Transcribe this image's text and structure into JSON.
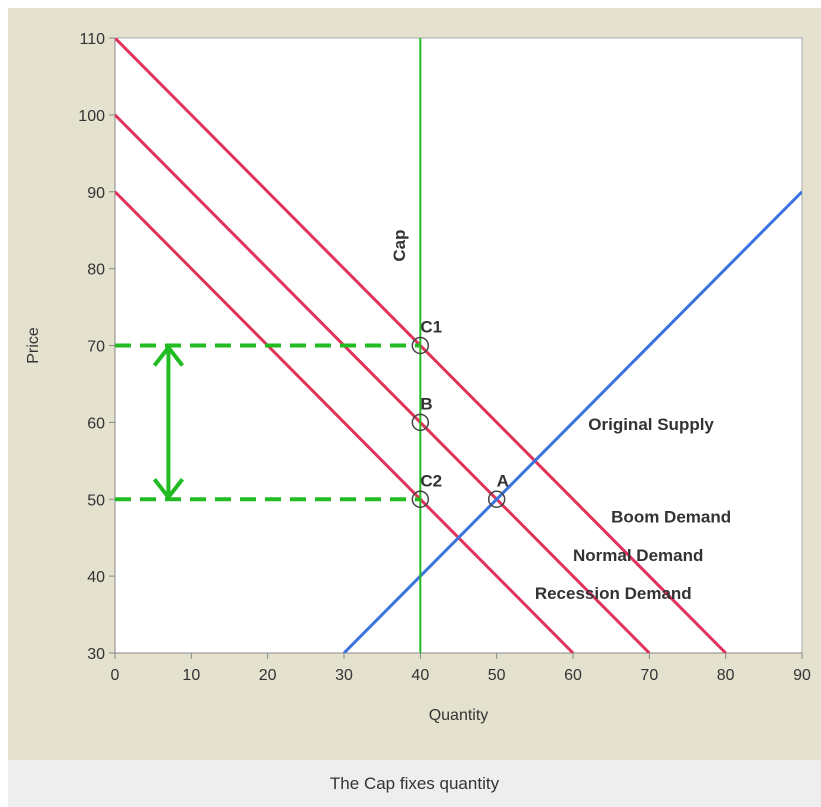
{
  "caption": "The Cap fixes quantity",
  "colors": {
    "demand": "#e0325a",
    "supply": "#3a73e0",
    "cap": "#22bb22",
    "panel": "#e5e1cf",
    "plot_bg": "#ffffff"
  },
  "chart_data": {
    "type": "line",
    "xlabel": "Quantity",
    "ylabel": "Price",
    "xlim": [
      0,
      90
    ],
    "ylim": [
      30,
      110
    ],
    "xticks": [
      0,
      10,
      20,
      30,
      40,
      50,
      60,
      70,
      80,
      90
    ],
    "yticks": [
      30,
      40,
      50,
      60,
      70,
      80,
      90,
      100,
      110
    ],
    "grid": false,
    "series": [
      {
        "name": "Boom Demand",
        "color": "#e0325a",
        "x": [
          0,
          80
        ],
        "y": [
          110,
          30
        ]
      },
      {
        "name": "Normal Demand",
        "color": "#e0325a",
        "x": [
          0,
          70
        ],
        "y": [
          100,
          30
        ]
      },
      {
        "name": "Recession Demand",
        "color": "#e0325a",
        "x": [
          0,
          60
        ],
        "y": [
          90,
          30
        ]
      },
      {
        "name": "Original Supply",
        "color": "#3a73e0",
        "x": [
          30,
          90
        ],
        "y": [
          30,
          90
        ]
      },
      {
        "name": "Cap",
        "color": "#22bb22",
        "x": [
          40,
          40
        ],
        "y": [
          30,
          110
        ]
      }
    ],
    "series_labels": [
      {
        "text": "Boom Demand",
        "x": 65,
        "y": 47
      },
      {
        "text": "Normal Demand",
        "x": 60,
        "y": 42
      },
      {
        "text": "Recession Demand",
        "x": 55,
        "y": 37
      },
      {
        "text": "Original Supply",
        "x": 62,
        "y": 59
      },
      {
        "text": "Cap",
        "x": 38,
        "y": 83,
        "rotate": true
      }
    ],
    "points": [
      {
        "label": "C1",
        "x": 40,
        "y": 70
      },
      {
        "label": "B",
        "x": 40,
        "y": 60
      },
      {
        "label": "C2",
        "x": 40,
        "y": 50
      },
      {
        "label": "A",
        "x": 50,
        "y": 50
      }
    ],
    "guides": [
      {
        "type": "dashed",
        "x": [
          0,
          40
        ],
        "y": [
          70,
          70
        ]
      },
      {
        "type": "dashed",
        "x": [
          0,
          40
        ],
        "y": [
          50,
          50
        ]
      },
      {
        "type": "double-arrow",
        "x": [
          7,
          7
        ],
        "y": [
          50,
          70
        ]
      }
    ]
  }
}
